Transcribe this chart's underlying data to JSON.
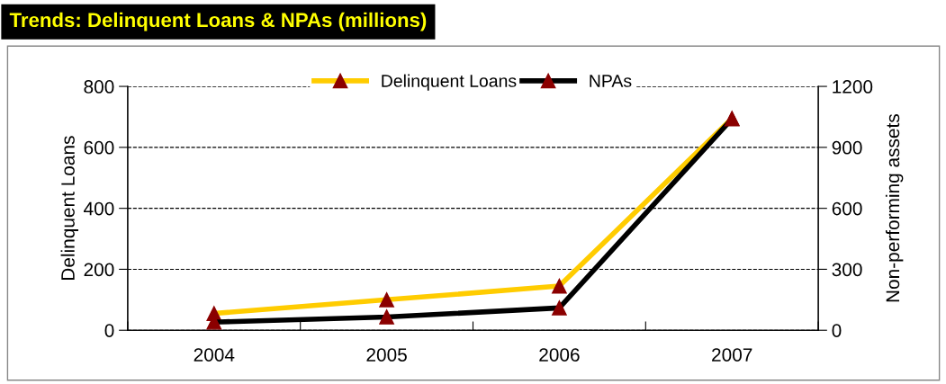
{
  "chart_data": {
    "type": "line",
    "title": "Trends: Delinquent Loans & NPAs (millions)",
    "categories": [
      "2004",
      "2005",
      "2006",
      "2007"
    ],
    "series": [
      {
        "name": "Delinquent Loans",
        "color": "#ffcc00",
        "values": [
          55,
          100,
          145,
          695
        ]
      },
      {
        "name": "NPAs",
        "color": "#000000",
        "values": [
          40,
          65,
          110,
          1040
        ],
        "axis": "y2"
      }
    ],
    "ylabel": "Delinquent Loans",
    "y2label": "Non-performing assets",
    "ylim": [
      0,
      800
    ],
    "yticks": [
      0,
      200,
      400,
      600,
      800
    ],
    "y2lim": [
      0,
      1200
    ],
    "y2ticks": [
      0,
      300,
      600,
      900,
      1200
    ],
    "grid": "y",
    "legend": "top",
    "marker": "triangle",
    "line_style": "solid"
  }
}
